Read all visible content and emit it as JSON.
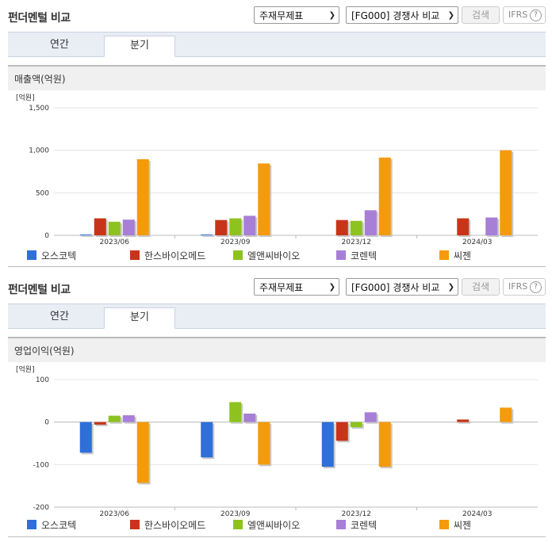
{
  "panels": [
    {
      "title": "펀더멘털 비교",
      "select1": "주재무제표",
      "select2": "[FG000] 경쟁사 비교",
      "search_label": "검색",
      "ifrs_label": "IFRS",
      "help_glyph": "?",
      "tabs": [
        "연간",
        "분기"
      ],
      "active_tab": 1,
      "metric_label": "매출액(억원)",
      "unit_label": "[억원]"
    },
    {
      "title": "펀더멘털 비교",
      "select1": "주재무제표",
      "select2": "[FG000] 경쟁사 비교",
      "search_label": "검색",
      "ifrs_label": "IFRS",
      "help_glyph": "?",
      "tabs": [
        "연간",
        "분기"
      ],
      "active_tab": 1,
      "metric_label": "영업이익(억원)",
      "unit_label": "[억원]"
    }
  ],
  "colors": {
    "오스코텍": "#2f6fd8",
    "한스바이오메드": "#c8341a",
    "엘앤씨바이오": "#8dc21f",
    "코렌텍": "#a77fd6",
    "씨젠": "#f59a0c"
  },
  "chart_data": [
    {
      "type": "bar",
      "categories": [
        "2023/06",
        "2023/09",
        "2023/12",
        "2024/03"
      ],
      "ylim": [
        0,
        1500
      ],
      "yticks": [
        0,
        500,
        1000,
        1500
      ],
      "ytick_labels": [
        "0",
        "500",
        "1,000",
        "1,500"
      ],
      "series": [
        {
          "name": "오스코텍",
          "values": [
            10,
            10,
            null,
            null
          ]
        },
        {
          "name": "한스바이오메드",
          "values": [
            200,
            180,
            180,
            200
          ]
        },
        {
          "name": "엘앤씨바이오",
          "values": [
            160,
            200,
            170,
            null
          ]
        },
        {
          "name": "코렌텍",
          "values": [
            185,
            230,
            295,
            210
          ]
        },
        {
          "name": "씨젠",
          "values": [
            895,
            845,
            915,
            1000
          ]
        }
      ]
    },
    {
      "type": "bar",
      "categories": [
        "2023/06",
        "2023/09",
        "2023/12",
        "2024/03"
      ],
      "ylim": [
        -200,
        100
      ],
      "yticks": [
        -200,
        -100,
        0,
        100
      ],
      "ytick_labels": [
        "-200",
        "-100",
        "0",
        "100"
      ],
      "series": [
        {
          "name": "오스코텍",
          "values": [
            -72,
            -83,
            -105,
            null
          ]
        },
        {
          "name": "한스바이오메드",
          "values": [
            -6,
            null,
            -44,
            6
          ]
        },
        {
          "name": "엘앤씨바이오",
          "values": [
            15,
            47,
            -12,
            null
          ]
        },
        {
          "name": "코렌텍",
          "values": [
            16,
            20,
            23,
            null
          ]
        },
        {
          "name": "씨젠",
          "values": [
            -143,
            -100,
            -105,
            34
          ]
        }
      ]
    }
  ]
}
